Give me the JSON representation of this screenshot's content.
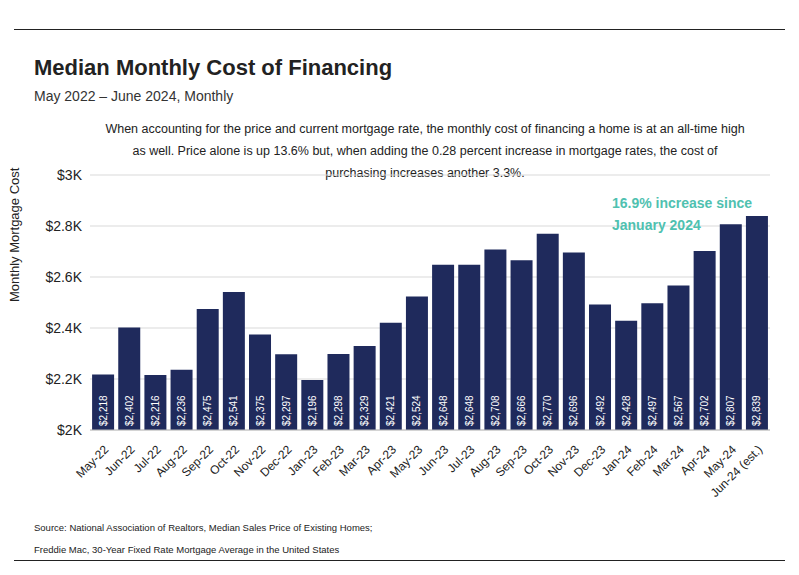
{
  "chart_data": {
    "type": "bar",
    "title": "Median Monthly Cost of Financing",
    "subtitle": "May 2022 – June 2024, Monthly",
    "description": "When accounting for the price and current mortgage rate, the monthly cost of financing a home is at an all-time high as well. Price alone is up 13.6% but, when adding the 0.28 percent increase in mortgage rates, the cost of purchasing increases another 3.3%.",
    "annotation": "16.9% increase since January 2024",
    "y_label": "Monthly Mortgage Cost",
    "source": [
      "Source: National Association of Realtors, Median Sales Price of Existing Homes;",
      "Freddie Mac, 30-Year Fixed Rate Mortgage Average in the United States"
    ],
    "categories": [
      "May-22",
      "Jun-22",
      "Jul-22",
      "Aug-22",
      "Sep-22",
      "Oct-22",
      "Nov-22",
      "Dec-22",
      "Jan-23",
      "Feb-23",
      "Mar-23",
      "Apr-23",
      "May-23",
      "Jun-23",
      "Jul-23",
      "Aug-23",
      "Sep-23",
      "Oct-23",
      "Nov-23",
      "Dec-23",
      "Jan-24",
      "Feb-24",
      "Mar-24",
      "Apr-24",
      "May-24",
      "Jun-24 (est.)"
    ],
    "values": [
      2218,
      2402,
      2216,
      2236,
      2475,
      2541,
      2375,
      2297,
      2196,
      2298,
      2329,
      2421,
      2524,
      2648,
      2648,
      2708,
      2666,
      2770,
      2696,
      2492,
      2428,
      2497,
      2567,
      2702,
      2807,
      2839
    ],
    "value_labels": [
      "$2,218",
      "$2,402",
      "$2,216",
      "$2,236",
      "$2,475",
      "$2,541",
      "$2,375",
      "$2,297",
      "$2,196",
      "$2,298",
      "$2,329",
      "$2,421",
      "$2,524",
      "$2,648",
      "$2,648",
      "$2,708",
      "$2,666",
      "$2,770",
      "$2,696",
      "$2,492",
      "$2,428",
      "$2,497",
      "$2,567",
      "$2,702",
      "$2,807",
      "$2,839"
    ],
    "data_labels": true,
    "color": "#1f2a5c",
    "ylim": [
      2000,
      3000
    ],
    "yticks": [
      {
        "value": 2000,
        "label": "$2K"
      },
      {
        "value": 2200,
        "label": "$2.2K"
      },
      {
        "value": 2400,
        "label": "$2.4K"
      },
      {
        "value": 2600,
        "label": "$2.6K"
      },
      {
        "value": 2800,
        "label": "$2.8K"
      },
      {
        "value": 3000,
        "label": "$3K"
      }
    ],
    "grid": true
  }
}
